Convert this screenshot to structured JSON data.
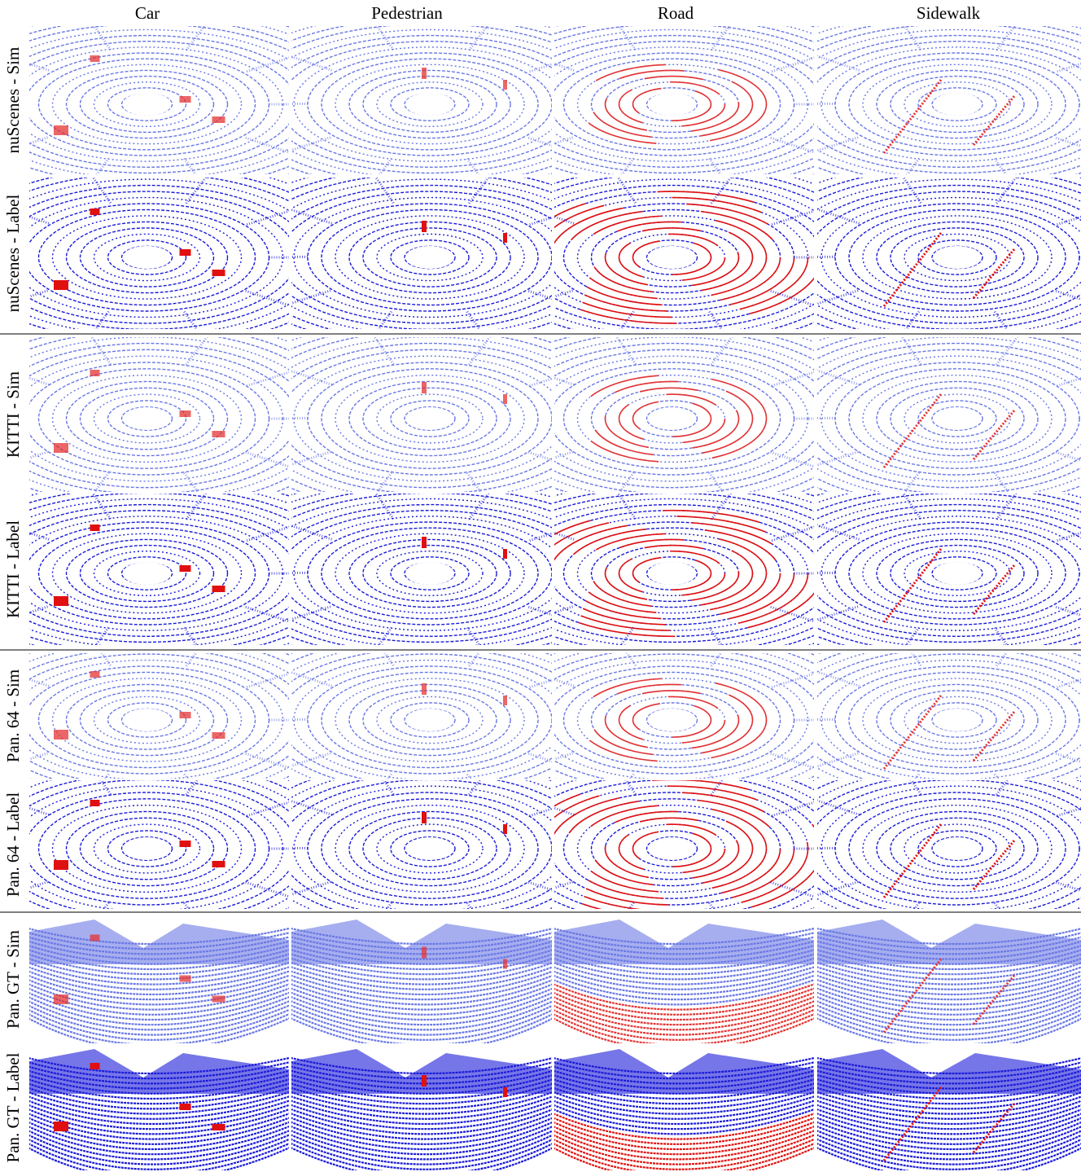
{
  "columns": [
    "Car",
    "Pedestrian",
    "Road",
    "Sidewalk"
  ],
  "row_labels": [
    "nuScenes - Sim",
    "nuScenes - Label",
    "KITTI - Sim",
    "KITTI - Label",
    "Pan. 64 - Sim",
    "Pan. 64 - Label",
    "Pan. GT - Sim",
    "Pan. GT - Label"
  ]
}
